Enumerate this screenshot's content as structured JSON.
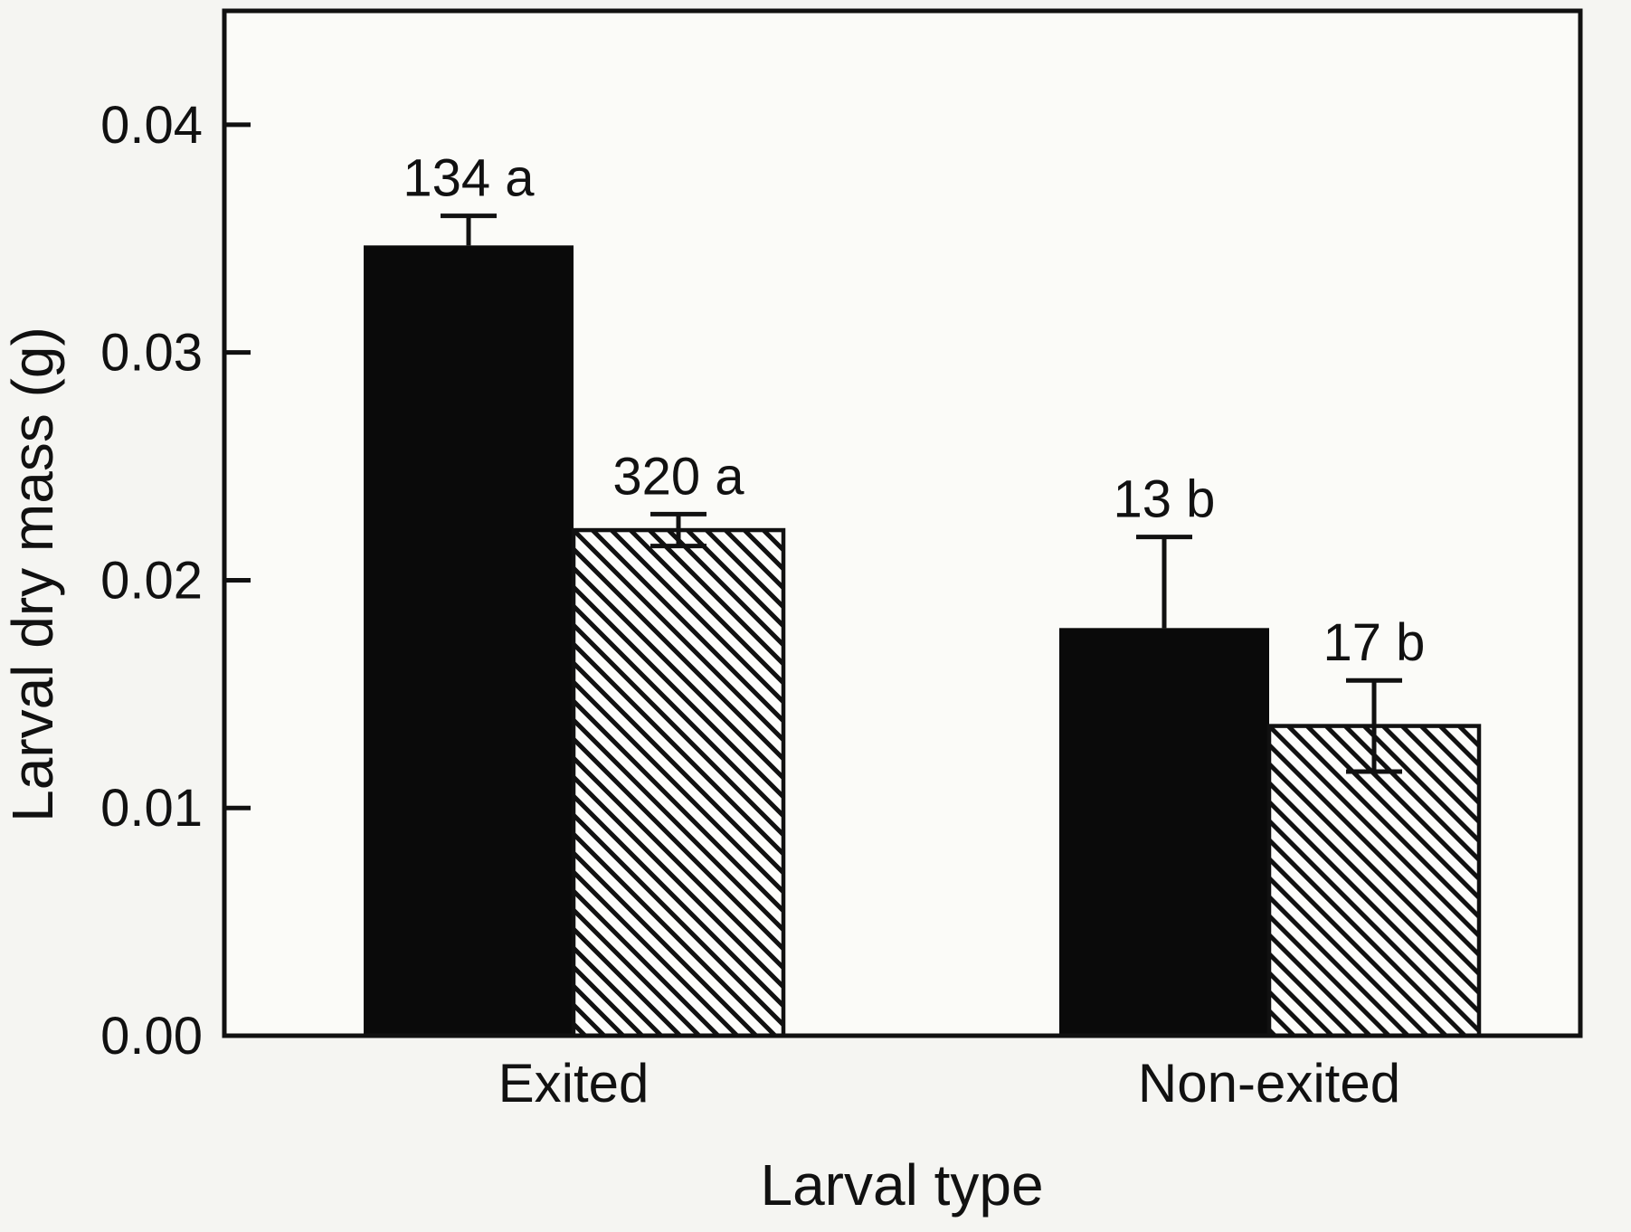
{
  "figure": {
    "background": "#f5f5f2",
    "plot_background": "#fbfbf8",
    "ink": "#111111"
  },
  "chart_data": {
    "type": "bar",
    "title": "",
    "xlabel": "Larval type",
    "ylabel": "Larval dry mass (g)",
    "categories": [
      "Exited",
      "Non-exited"
    ],
    "series": [
      {
        "name": "solid-black",
        "pattern": "solid",
        "values": [
          0.0347,
          0.0179
        ],
        "error_up": [
          0.0013,
          0.004
        ],
        "error_down": [
          0.0,
          0.0
        ],
        "annotations": [
          "134 a",
          "13 b"
        ]
      },
      {
        "name": "hatched",
        "pattern": "diagonal-hatch",
        "values": [
          0.0222,
          0.0136
        ],
        "error_up": [
          0.0007,
          0.002
        ],
        "error_down": [
          0.0007,
          0.002
        ],
        "annotations": [
          "320 a",
          "17 b"
        ]
      }
    ],
    "y_ticks": [
      {
        "value": 0.0,
        "label": "0.00"
      },
      {
        "value": 0.01,
        "label": "0.01"
      },
      {
        "value": 0.02,
        "label": "0.02"
      },
      {
        "value": 0.03,
        "label": "0.03"
      },
      {
        "value": 0.04,
        "label": "0.04"
      }
    ],
    "ylim": [
      0,
      0.045
    ],
    "grid": false,
    "legend": null,
    "colors": {
      "bar_fill": "#0a0a0a",
      "hatch_line": "#111111",
      "hatch_background": "#fdfdfb"
    }
  }
}
